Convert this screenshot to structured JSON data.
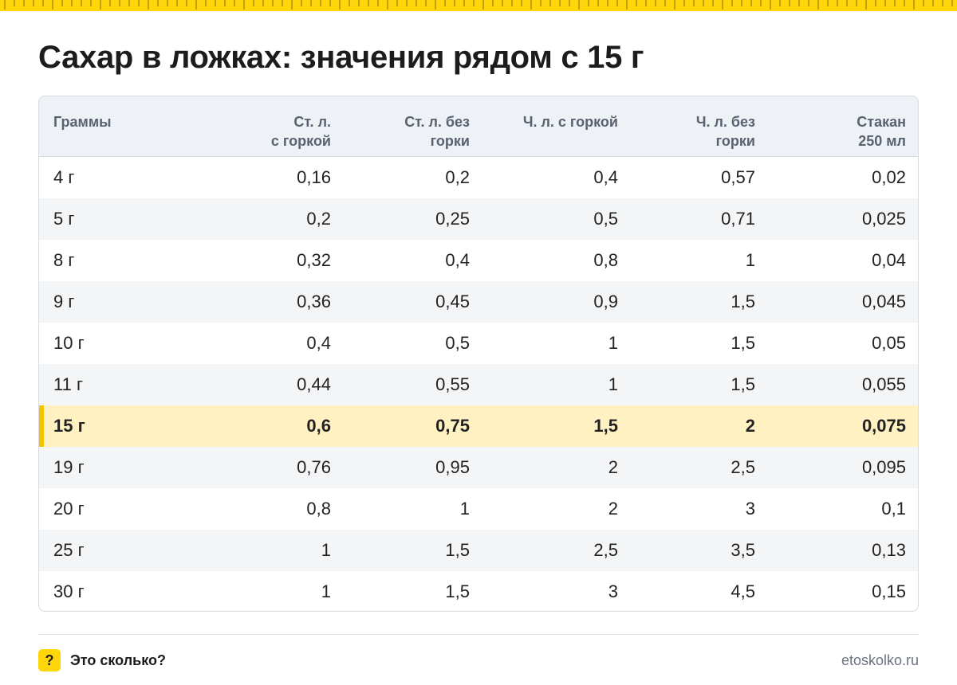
{
  "title": "Сахар в ложках: значения рядом с 15 г",
  "colors": {
    "accent": "#ffd60a",
    "highlight_row": "#fff1c2",
    "highlight_bar": "#f5c400",
    "header_bg": "#eef1f5"
  },
  "table": {
    "headers": [
      {
        "line1": "Граммы",
        "line2": ""
      },
      {
        "line1": "Ст. л.",
        "line2": "с горкой"
      },
      {
        "line1": "Ст. л. без",
        "line2": "горки"
      },
      {
        "line1": "Ч. л. с горкой",
        "line2": ""
      },
      {
        "line1": "Ч. л. без",
        "line2": "горки"
      },
      {
        "line1": "Стакан",
        "line2": "250 мл"
      }
    ],
    "rows": [
      [
        "4 г",
        "0,16",
        "0,2",
        "0,4",
        "0,57",
        "0,02"
      ],
      [
        "5 г",
        "0,2",
        "0,25",
        "0,5",
        "0,71",
        "0,025"
      ],
      [
        "8 г",
        "0,32",
        "0,4",
        "0,8",
        "1",
        "0,04"
      ],
      [
        "9 г",
        "0,36",
        "0,45",
        "0,9",
        "1,5",
        "0,045"
      ],
      [
        "10 г",
        "0,4",
        "0,5",
        "1",
        "1,5",
        "0,05"
      ],
      [
        "11 г",
        "0,44",
        "0,55",
        "1",
        "1,5",
        "0,055"
      ],
      [
        "15 г",
        "0,6",
        "0,75",
        "1,5",
        "2",
        "0,075"
      ],
      [
        "19 г",
        "0,76",
        "0,95",
        "2",
        "2,5",
        "0,095"
      ],
      [
        "20 г",
        "0,8",
        "1",
        "2",
        "3",
        "0,1"
      ],
      [
        "25 г",
        "1",
        "1,5",
        "2,5",
        "3,5",
        "0,13"
      ],
      [
        "30 г",
        "1",
        "1,5",
        "3",
        "4,5",
        "0,15"
      ]
    ],
    "highlighted_row": "15 г"
  },
  "footer": {
    "badge_icon": "question-mark-icon",
    "badge_text": "?",
    "brand": "Это сколько?",
    "site": "etoskolko.ru"
  }
}
